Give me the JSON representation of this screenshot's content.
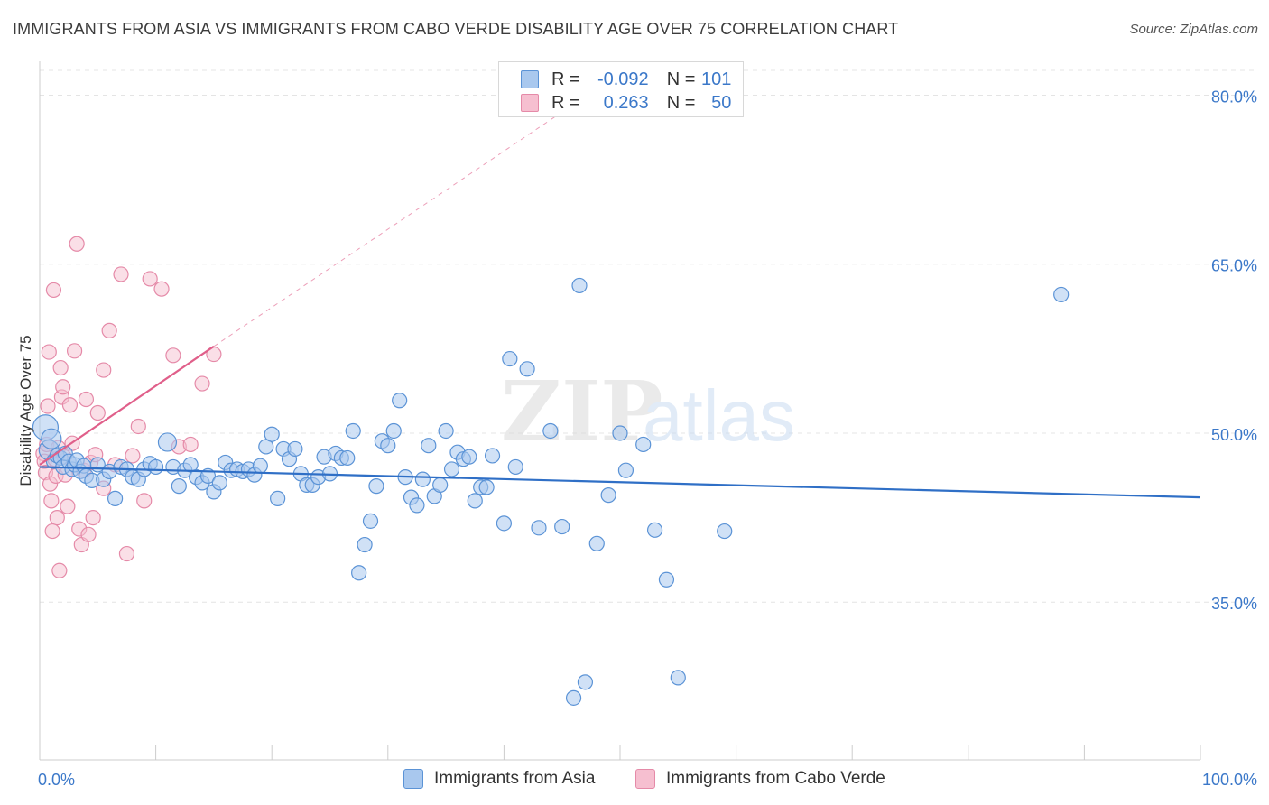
{
  "title": "IMMIGRANTS FROM ASIA VS IMMIGRANTS FROM CABO VERDE DISABILITY AGE OVER 75 CORRELATION CHART",
  "source": "Source: ZipAtlas.com",
  "watermark": {
    "zip": "ZIP",
    "atlas": "atlas"
  },
  "colors": {
    "asia_fill": "#a9c8ee",
    "asia_stroke": "#5b93d6",
    "asia_line": "#2f6fc6",
    "cabo_fill": "#f6bfd0",
    "cabo_stroke": "#e58aa8",
    "cabo_line": "#e05f8a",
    "axis_label": "#3b78c9",
    "grid": "#e4e4e4"
  },
  "legend": {
    "rows": [
      {
        "series": "asia",
        "r_label": "R =",
        "r_value": "-0.092",
        "n_label": "N =",
        "n_value": "101"
      },
      {
        "series": "cabo",
        "r_label": "R =",
        "r_value": "0.263",
        "n_label": "N =",
        "n_value": "50"
      }
    ]
  },
  "bottom_legend": [
    {
      "series": "asia",
      "label": "Immigrants from Asia"
    },
    {
      "series": "cabo",
      "label": "Immigrants from Cabo Verde"
    }
  ],
  "chart_data": {
    "type": "scatter",
    "title": "IMMIGRANTS FROM ASIA VS IMMIGRANTS FROM CABO VERDE DISABILITY AGE OVER 75 CORRELATION CHART",
    "xlabel": "",
    "ylabel": "Disability Age Over 75",
    "xlim": [
      0,
      100
    ],
    "ylim": [
      21,
      83
    ],
    "x_tick_labels": [
      {
        "value": 0,
        "label": "0.0%"
      },
      {
        "value": 100,
        "label": "100.0%"
      }
    ],
    "y_tick_labels": [
      {
        "value": 80,
        "label": "80.0%"
      },
      {
        "value": 65,
        "label": "65.0%"
      },
      {
        "value": 50,
        "label": "50.0%"
      },
      {
        "value": 35,
        "label": "35.0%"
      }
    ],
    "grid": true,
    "series": [
      {
        "name": "Immigrants from Asia",
        "key": "asia",
        "trend": {
          "x": [
            0,
            100
          ],
          "y": [
            47.0,
            44.3
          ],
          "style": "solid"
        },
        "points": [
          [
            0.5,
            50.5
          ],
          [
            0.8,
            48.5
          ],
          [
            1.0,
            49.5
          ],
          [
            1.2,
            47.5
          ],
          [
            1.5,
            48.0
          ],
          [
            1.8,
            47.8
          ],
          [
            2.0,
            47.0
          ],
          [
            2.2,
            48.2
          ],
          [
            2.5,
            47.5
          ],
          [
            2.8,
            46.8
          ],
          [
            3.0,
            47.2
          ],
          [
            3.2,
            47.6
          ],
          [
            3.5,
            46.6
          ],
          [
            3.8,
            47.1
          ],
          [
            4.0,
            46.2
          ],
          [
            4.5,
            45.8
          ],
          [
            5.0,
            47.2
          ],
          [
            5.5,
            45.9
          ],
          [
            6.0,
            46.6
          ],
          [
            6.5,
            44.2
          ],
          [
            7.0,
            47.0
          ],
          [
            7.5,
            46.8
          ],
          [
            8.0,
            46.1
          ],
          [
            8.5,
            45.9
          ],
          [
            9.0,
            46.8
          ],
          [
            9.5,
            47.3
          ],
          [
            10.0,
            47.0
          ],
          [
            11.0,
            49.2
          ],
          [
            11.5,
            47.0
          ],
          [
            12.0,
            45.3
          ],
          [
            12.5,
            46.7
          ],
          [
            13.0,
            47.2
          ],
          [
            13.5,
            46.1
          ],
          [
            14.0,
            45.6
          ],
          [
            14.5,
            46.2
          ],
          [
            15.0,
            44.8
          ],
          [
            15.5,
            45.6
          ],
          [
            16.0,
            47.4
          ],
          [
            16.5,
            46.7
          ],
          [
            17.0,
            46.8
          ],
          [
            17.5,
            46.6
          ],
          [
            18.0,
            46.8
          ],
          [
            18.5,
            46.3
          ],
          [
            19.0,
            47.1
          ],
          [
            19.5,
            48.8
          ],
          [
            20.0,
            49.9
          ],
          [
            20.5,
            44.2
          ],
          [
            21.0,
            48.6
          ],
          [
            21.5,
            47.7
          ],
          [
            22.0,
            48.6
          ],
          [
            22.5,
            46.4
          ],
          [
            23.0,
            45.4
          ],
          [
            23.5,
            45.4
          ],
          [
            24.0,
            46.1
          ],
          [
            24.5,
            47.9
          ],
          [
            25.0,
            46.4
          ],
          [
            25.5,
            48.2
          ],
          [
            26.0,
            47.8
          ],
          [
            26.5,
            47.8
          ],
          [
            27.0,
            50.2
          ],
          [
            27.5,
            37.6
          ],
          [
            28.0,
            40.1
          ],
          [
            28.5,
            42.2
          ],
          [
            29.0,
            45.3
          ],
          [
            29.5,
            49.3
          ],
          [
            30.0,
            48.9
          ],
          [
            30.5,
            50.2
          ],
          [
            31.0,
            52.9
          ],
          [
            31.5,
            46.1
          ],
          [
            32.0,
            44.3
          ],
          [
            32.5,
            43.6
          ],
          [
            33.0,
            45.9
          ],
          [
            33.5,
            48.9
          ],
          [
            34.0,
            44.4
          ],
          [
            34.5,
            45.4
          ],
          [
            35.0,
            50.2
          ],
          [
            35.5,
            46.8
          ],
          [
            36.0,
            48.3
          ],
          [
            36.5,
            47.7
          ],
          [
            37.0,
            47.9
          ],
          [
            37.5,
            44.0
          ],
          [
            38.0,
            45.2
          ],
          [
            38.5,
            45.2
          ],
          [
            39.0,
            48.0
          ],
          [
            40.0,
            42.0
          ],
          [
            40.5,
            56.6
          ],
          [
            41.0,
            47.0
          ],
          [
            42.0,
            55.7
          ],
          [
            43.0,
            41.6
          ],
          [
            44.0,
            50.2
          ],
          [
            45.0,
            41.7
          ],
          [
            46.0,
            26.5
          ],
          [
            46.5,
            63.1
          ],
          [
            47.0,
            27.9
          ],
          [
            48.0,
            40.2
          ],
          [
            49.0,
            44.5
          ],
          [
            50.0,
            50.0
          ],
          [
            50.5,
            46.7
          ],
          [
            52.0,
            49.0
          ],
          [
            53.0,
            41.4
          ],
          [
            54.0,
            37.0
          ],
          [
            55.0,
            28.3
          ],
          [
            59.0,
            41.3
          ],
          [
            88.0,
            62.3
          ]
        ]
      },
      {
        "name": "Immigrants from Cabo Verde",
        "key": "cabo",
        "trend": {
          "x": [
            0,
            15
          ],
          "y": [
            47.2,
            57.7
          ],
          "style": "solid",
          "extension": {
            "x": [
              15,
              45
            ],
            "y": [
              57.7,
              78.5
            ],
            "style": "dashed"
          }
        },
        "points": [
          [
            0.3,
            48.2
          ],
          [
            0.4,
            47.5
          ],
          [
            0.5,
            46.5
          ],
          [
            0.6,
            49.0
          ],
          [
            0.7,
            52.4
          ],
          [
            0.8,
            57.2
          ],
          [
            0.9,
            45.5
          ],
          [
            1.0,
            44.0
          ],
          [
            1.1,
            41.3
          ],
          [
            1.2,
            62.7
          ],
          [
            1.3,
            47.7
          ],
          [
            1.4,
            46.2
          ],
          [
            1.5,
            42.5
          ],
          [
            1.6,
            48.7
          ],
          [
            1.7,
            37.8
          ],
          [
            1.8,
            55.8
          ],
          [
            1.9,
            53.2
          ],
          [
            2.0,
            54.1
          ],
          [
            2.2,
            46.3
          ],
          [
            2.4,
            43.5
          ],
          [
            2.6,
            52.5
          ],
          [
            2.8,
            49.1
          ],
          [
            3.0,
            57.3
          ],
          [
            3.2,
            66.8
          ],
          [
            3.4,
            41.5
          ],
          [
            3.6,
            40.1
          ],
          [
            3.8,
            46.7
          ],
          [
            4.0,
            53.0
          ],
          [
            4.2,
            41.0
          ],
          [
            4.4,
            47.4
          ],
          [
            4.6,
            42.5
          ],
          [
            4.8,
            48.1
          ],
          [
            5.0,
            51.8
          ],
          [
            5.5,
            45.1
          ],
          [
            6.0,
            59.1
          ],
          [
            6.5,
            47.2
          ],
          [
            7.0,
            64.1
          ],
          [
            7.5,
            39.3
          ],
          [
            8.0,
            48.0
          ],
          [
            8.5,
            50.6
          ],
          [
            9.0,
            44.0
          ],
          [
            9.5,
            63.7
          ],
          [
            10.5,
            62.8
          ],
          [
            11.5,
            56.9
          ],
          [
            12.0,
            48.8
          ],
          [
            13.0,
            49.0
          ],
          [
            14.0,
            54.4
          ],
          [
            15.0,
            57.0
          ],
          [
            5.5,
            55.6
          ],
          [
            2.1,
            47.9
          ]
        ]
      }
    ]
  }
}
